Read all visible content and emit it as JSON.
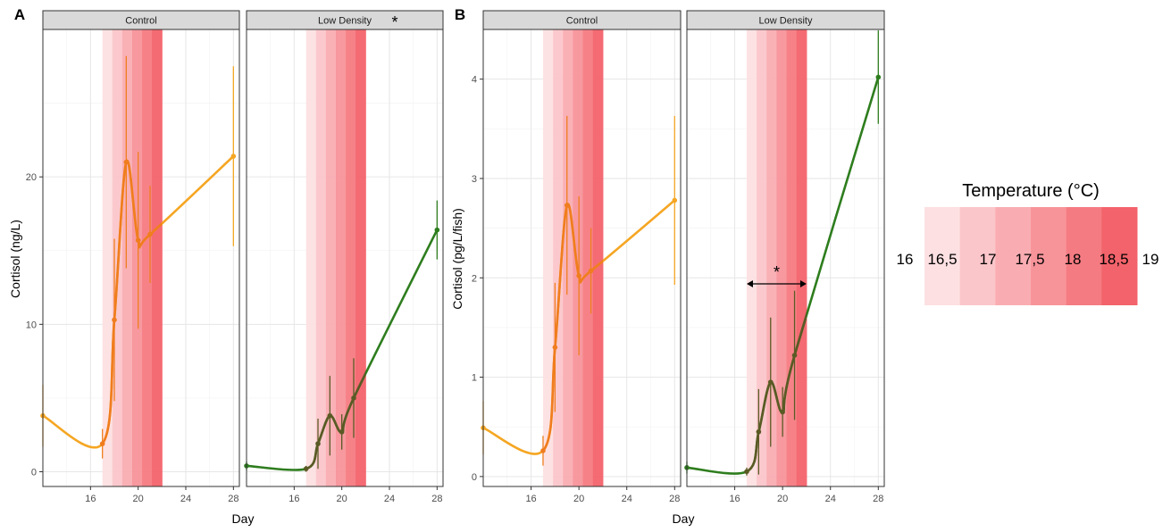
{
  "figure": {
    "panel_tags": [
      "A",
      "B"
    ],
    "legend": {
      "title": "Temperature (°C)",
      "labels": [
        "16",
        "16,5",
        "17",
        "17,5",
        "18",
        "18,5",
        "19"
      ],
      "colors": [
        "#fde0e2",
        "#fbc6ca",
        "#f9adb2",
        "#f7949a",
        "#f57b82",
        "#f3636b"
      ]
    },
    "colors": {
      "control": "#f5a623",
      "control_heat": "#f07d1e",
      "low_density": "#2e7d1e",
      "low_density_heat": "#5a5a25"
    },
    "significance": {
      "A_low_density": "*",
      "B_low_density": "*"
    }
  },
  "chart_data": [
    {
      "type": "line",
      "panel": "A",
      "xlabel": "Day",
      "ylabel": "Cortisol (ng/L)",
      "xlim": [
        12,
        28.5
      ],
      "ylim": [
        -1,
        30
      ],
      "xticks": [
        16,
        20,
        24,
        28
      ],
      "yticks": [
        0,
        10,
        20
      ],
      "heat_window": [
        17,
        22
      ],
      "facets": [
        {
          "strip": "Control",
          "x": [
            12,
            17,
            18,
            19,
            20,
            21,
            28
          ],
          "y": [
            3.8,
            1.9,
            10.3,
            21.0,
            15.7,
            16.1,
            21.4
          ],
          "err": [
            2.1,
            1.0,
            5.5,
            7.2,
            6.0,
            3.3,
            6.1
          ]
        },
        {
          "strip": "Low Density",
          "x": [
            12,
            17,
            18,
            19,
            20,
            21,
            28
          ],
          "y": [
            0.4,
            0.2,
            1.9,
            3.8,
            2.7,
            5.0,
            16.4
          ],
          "err": [
            0.3,
            0.2,
            1.7,
            2.7,
            1.2,
            2.7,
            2.0
          ]
        }
      ]
    },
    {
      "type": "line",
      "panel": "B",
      "xlabel": "Day",
      "ylabel": "Cortisol (pg/L/fish)",
      "xlim": [
        12,
        28.5
      ],
      "ylim": [
        -0.1,
        4.5
      ],
      "xticks": [
        16,
        20,
        24,
        28
      ],
      "yticks": [
        0,
        1,
        2,
        3,
        4
      ],
      "heat_window": [
        17,
        22
      ],
      "significance_span": [
        17,
        22
      ],
      "facets": [
        {
          "strip": "Control",
          "x": [
            12,
            17,
            18,
            19,
            20,
            21,
            28
          ],
          "y": [
            0.49,
            0.26,
            1.3,
            2.73,
            2.02,
            2.07,
            2.78
          ],
          "err": [
            0.27,
            0.15,
            0.65,
            0.9,
            0.8,
            0.43,
            0.85
          ]
        },
        {
          "strip": "Low Density",
          "x": [
            12,
            17,
            18,
            19,
            20,
            21,
            28
          ],
          "y": [
            0.09,
            0.05,
            0.45,
            0.95,
            0.65,
            1.22,
            4.02
          ],
          "err": [
            0.06,
            0.04,
            0.43,
            0.65,
            0.25,
            0.65,
            0.47
          ]
        }
      ]
    }
  ]
}
